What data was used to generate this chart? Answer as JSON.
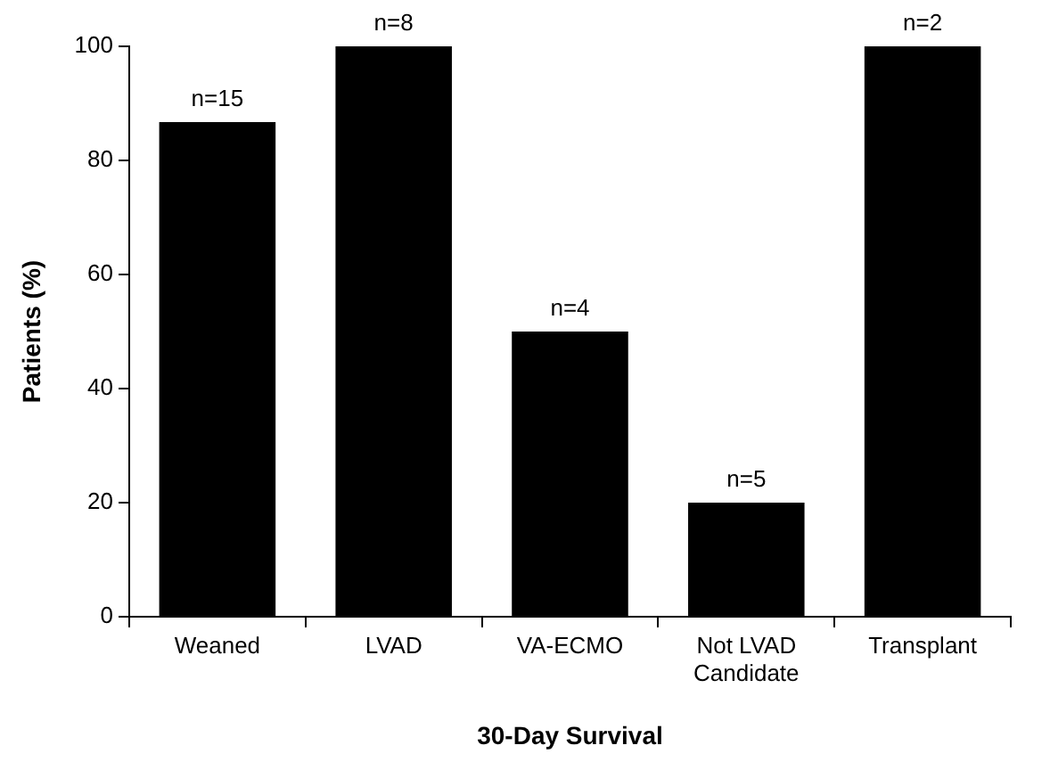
{
  "chart_data": {
    "type": "bar",
    "xlabel": "30-Day Survival",
    "ylabel": "Patients (%)",
    "categories": [
      "Weaned",
      "LVAD",
      "VA-ECMO",
      "Not LVAD Candidate",
      "Transplant"
    ],
    "values": [
      86.7,
      100,
      50,
      20,
      100
    ],
    "color": "#000000",
    "ylim": [
      0,
      100
    ],
    "yticks": [
      0,
      20,
      40,
      60,
      80,
      100
    ],
    "grid": false,
    "legend": false,
    "annotations": [
      {
        "text": "n=15",
        "x": "Weaned",
        "y": 86.7
      },
      {
        "text": "n=8",
        "x": "LVAD",
        "y": 100
      },
      {
        "text": "n=4",
        "x": "VA-ECMO",
        "y": 50
      },
      {
        "text": "n=5",
        "x": "Not LVAD Candidate",
        "y": 20
      },
      {
        "text": "n=2",
        "x": "Transplant",
        "y": 100
      }
    ]
  }
}
